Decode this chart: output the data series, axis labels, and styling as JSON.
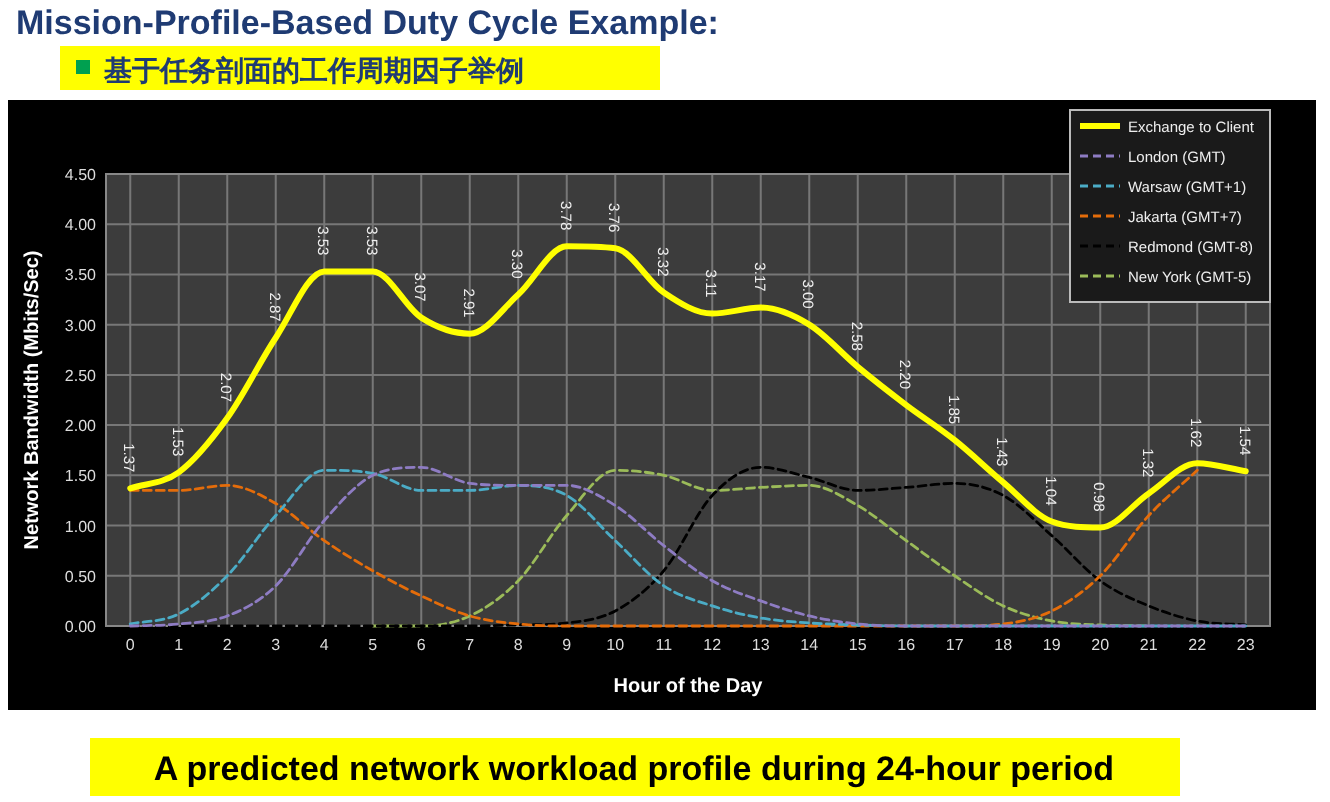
{
  "chart_data": {
    "type": "line",
    "title": "Mission-Profile-Based Duty Cycle Example:",
    "subtitle": "基于任务剖面的工作周期因子举例",
    "xlabel": "Hour of the Day",
    "ylabel": "Network Bandwidth (Mbits/Sec)",
    "annotations": [
      "A predicted network workload profile during 24-hour period"
    ],
    "x": [
      0,
      1,
      2,
      3,
      4,
      5,
      6,
      7,
      8,
      9,
      10,
      11,
      12,
      13,
      14,
      15,
      16,
      17,
      18,
      19,
      20,
      21,
      22,
      23
    ],
    "xlim": [
      -0.5,
      23.5
    ],
    "xticks": [
      0,
      1,
      2,
      3,
      4,
      5,
      6,
      7,
      8,
      9,
      10,
      11,
      12,
      13,
      14,
      15,
      16,
      17,
      18,
      19,
      20,
      21,
      22,
      23
    ],
    "ylim": [
      0,
      4.5
    ],
    "yticks": [
      {
        "value": 0,
        "label": "0.00"
      },
      {
        "value": 0.5,
        "label": "0.50"
      },
      {
        "value": 1,
        "label": "1.00"
      },
      {
        "value": 1.5,
        "label": "1.50"
      },
      {
        "value": 2,
        "label": "2.00"
      },
      {
        "value": 2.5,
        "label": "2.50"
      },
      {
        "value": 3,
        "label": "3.00"
      },
      {
        "value": 3.5,
        "label": "3.50"
      },
      {
        "value": 4,
        "label": "4.00"
      },
      {
        "value": 4.5,
        "label": "4.50"
      }
    ],
    "grid": true,
    "legend": "top right",
    "series": [
      {
        "name": "Exchange to Client",
        "color": "#ffff00",
        "line_style": "solid",
        "values": [
          1.37,
          1.53,
          2.07,
          2.87,
          3.53,
          3.53,
          3.07,
          2.91,
          3.3,
          3.78,
          3.76,
          3.32,
          3.11,
          3.17,
          3.0,
          2.58,
          2.2,
          1.85,
          1.43,
          1.04,
          0.98,
          1.32,
          1.62,
          1.54
        ],
        "value_labels": [
          "1.37",
          "1.53",
          "2.07",
          "2.87",
          "3.53",
          "3.53",
          "3.07",
          "2.91",
          "3.30",
          "3.78",
          "3.76",
          "3.32",
          "3.11",
          "3.17",
          "3.00",
          "2.58",
          "2.20",
          "1.85",
          "1.43",
          "1.04",
          "0.98",
          "1.32",
          "1.62",
          "1.54"
        ]
      },
      {
        "name": "London (GMT)",
        "color": "#8e7cc3",
        "line_style": "dashed",
        "values": [
          0,
          0.02,
          0.1,
          0.4,
          1.05,
          1.5,
          1.58,
          1.42,
          1.4,
          1.4,
          1.2,
          0.8,
          0.45,
          0.25,
          0.1,
          0.02,
          0,
          0,
          0,
          0,
          0,
          0,
          0,
          0
        ]
      },
      {
        "name": "Warsaw (GMT+1)",
        "color": "#4bacc6",
        "line_style": "dashed",
        "values": [
          0.02,
          0.12,
          0.5,
          1.1,
          1.55,
          1.52,
          1.35,
          1.35,
          1.4,
          1.3,
          0.85,
          0.4,
          0.2,
          0.08,
          0.03,
          0.01,
          0,
          0,
          0,
          0,
          0,
          0,
          0,
          0
        ]
      },
      {
        "name": "Jakarta (GMT+7)",
        "color": "#e46c0a",
        "line_style": "dashed",
        "values": [
          1.35,
          1.35,
          1.4,
          1.22,
          0.85,
          0.55,
          0.3,
          0.1,
          0.02,
          0,
          0,
          0,
          0,
          0,
          0,
          0,
          0,
          0,
          0.02,
          0.15,
          0.5,
          1.1,
          1.55,
          null
        ]
      },
      {
        "name": "Redmond (GMT-8)",
        "color": "#000000",
        "line_style": "dashed",
        "values": [
          0,
          0,
          0,
          0,
          0,
          0,
          0,
          0,
          0.01,
          0.03,
          0.15,
          0.55,
          1.3,
          1.58,
          1.48,
          1.35,
          1.38,
          1.42,
          1.3,
          0.9,
          0.45,
          0.2,
          0.05,
          0.01
        ]
      },
      {
        "name": "New York (GMT-5)",
        "color": "#9bbb59",
        "line_style": "dashed",
        "values": [
          null,
          null,
          null,
          null,
          null,
          0,
          0,
          0.1,
          0.45,
          1.1,
          1.55,
          1.5,
          1.35,
          1.38,
          1.4,
          1.2,
          0.85,
          0.5,
          0.2,
          0.05,
          0.01,
          0,
          null,
          null
        ]
      }
    ]
  }
}
